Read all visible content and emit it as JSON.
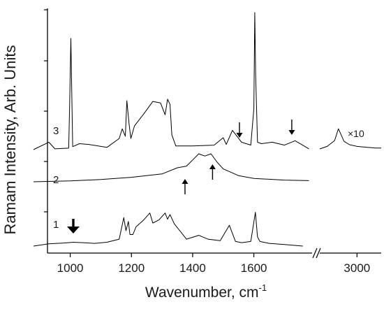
{
  "chart_data": {
    "type": "line",
    "xlabel": "Wavenumber, cm",
    "xlabel_superscript": "-1",
    "ylabel": "Ramam Intensity, Arb. Units",
    "x_axis_break": true,
    "x_ticks": [
      "1000",
      "1200",
      "1400",
      "1600",
      "3000"
    ],
    "x_range_main": [
      880,
      1780
    ],
    "x_range_high": [
      2800,
      3130
    ],
    "y_ticks": "unlabeled",
    "series": [
      {
        "name": "1",
        "x": [
          880,
          930,
          980,
          1010,
          1040,
          1080,
          1120,
          1160,
          1175,
          1182,
          1190,
          1195,
          1205,
          1215,
          1240,
          1260,
          1270,
          1290,
          1310,
          1318,
          1326,
          1340,
          1380,
          1420,
          1450,
          1490,
          1520,
          1540,
          1560,
          1590,
          1605,
          1612,
          1620,
          1650,
          1700,
          1760
        ],
        "y": [
          0.0,
          0.3,
          0.4,
          0.5,
          0.45,
          0.35,
          0.5,
          0.9,
          3.7,
          2.0,
          3.2,
          1.5,
          1.5,
          2.5,
          3.4,
          4.3,
          3.0,
          3.4,
          4.3,
          3.5,
          4.1,
          2.9,
          0.9,
          1.4,
          0.9,
          0.7,
          2.7,
          0.6,
          0.45,
          0.6,
          4.4,
          1.2,
          0.6,
          0.35,
          0.2,
          0.0
        ]
      },
      {
        "name": "2",
        "x": [
          880,
          1000,
          1100,
          1200,
          1300,
          1350,
          1380,
          1400,
          1420,
          1440,
          1460,
          1480,
          1500,
          1550,
          1600,
          1700,
          1780
        ],
        "y": [
          0.0,
          0.15,
          0.4,
          0.8,
          1.4,
          2.5,
          2.8,
          3.9,
          5.0,
          4.6,
          5.0,
          3.5,
          2.3,
          1.1,
          0.6,
          0.3,
          0.2
        ]
      },
      {
        "name": "3",
        "x": [
          880,
          930,
          950,
          995,
          998,
          1002,
          1008,
          1030,
          1060,
          1120,
          1160,
          1170,
          1180,
          1185,
          1192,
          1198,
          1210,
          1240,
          1270,
          1295,
          1310,
          1318,
          1326,
          1332,
          1345,
          1400,
          1470,
          1500,
          1510,
          1530,
          1560,
          1590,
          1600,
          1603,
          1606,
          1612,
          1625,
          1660,
          1700,
          1735,
          1780
        ],
        "y": [
          0.0,
          1.0,
          0.1,
          0.2,
          5.8,
          15.0,
          0.4,
          0.8,
          0.7,
          0.3,
          1.5,
          2.8,
          1.8,
          6.6,
          3.6,
          1.5,
          3.2,
          4.8,
          6.5,
          6.3,
          4.7,
          6.8,
          6.1,
          2.0,
          0.5,
          0.5,
          0.6,
          1.6,
          0.7,
          2.6,
          1.0,
          0.6,
          5.5,
          18.5,
          10.0,
          1.0,
          0.8,
          1.0,
          0.6,
          1.2,
          0.1
        ]
      },
      {
        "name": "3 (×10)",
        "x": [
          2800,
          2840,
          2880,
          2900,
          2930,
          2960,
          3000,
          3050,
          3100,
          3130
        ],
        "y": [
          0.0,
          0.3,
          1.0,
          2.4,
          0.9,
          0.5,
          0.3,
          0.2,
          0.1,
          0.1
        ]
      }
    ],
    "annotations": [
      {
        "text": "3",
        "label_for": "series 3"
      },
      {
        "text": "2",
        "label_for": "series 2"
      },
      {
        "text": "1",
        "label_for": "series 1"
      },
      {
        "text": "×10",
        "label_for": "high-wavenumber segment of series 3"
      }
    ],
    "arrows": [
      {
        "series": "1",
        "x": 1010,
        "direction": "down",
        "style": "bold"
      },
      {
        "series": "2",
        "x": 1375,
        "direction": "up"
      },
      {
        "series": "2",
        "x": 1465,
        "direction": "up"
      },
      {
        "series": "3",
        "x": 1553,
        "direction": "down"
      },
      {
        "series": "3",
        "x": 1724,
        "direction": "down"
      }
    ]
  }
}
